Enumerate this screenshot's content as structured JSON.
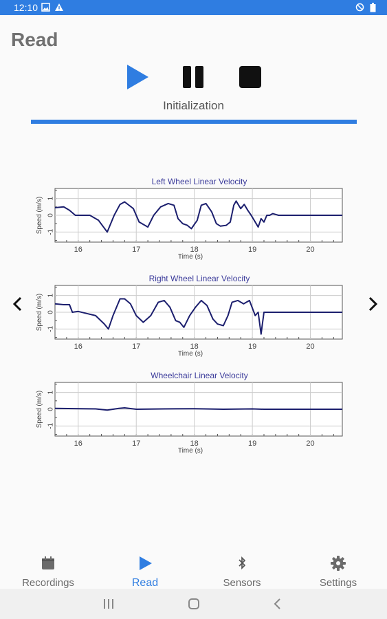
{
  "status_bar": {
    "time": "12:10"
  },
  "header": {
    "title": "Read"
  },
  "player": {
    "status": "Initialization",
    "progress": 1.0
  },
  "charts": [
    {
      "title": "Left Wheel Linear Velocity",
      "ylabel": "Speed (m/s)",
      "xlabel": "Time (s)"
    },
    {
      "title": "Right Wheel Linear Velocity",
      "ylabel": "Speed (m/s)",
      "xlabel": "Time (s)"
    },
    {
      "title": "Wheelchair Linear Velocity",
      "ylabel": "Speed (m/s)",
      "xlabel": "Time (s)"
    }
  ],
  "chart_data": [
    {
      "type": "line",
      "title": "Left Wheel Linear Velocity",
      "xlabel": "Time (s)",
      "ylabel": "Speed (m/s)",
      "xlim": [
        15.6,
        20.55
      ],
      "ylim": [
        -1.6,
        1.6
      ],
      "xticks": [
        16,
        17,
        18,
        19,
        20
      ],
      "yticks": [
        -1,
        0,
        1
      ],
      "grid": true,
      "x": [
        15.6,
        15.75,
        15.85,
        15.95,
        16.2,
        16.35,
        16.5,
        16.62,
        16.72,
        16.8,
        16.95,
        17.05,
        17.2,
        17.3,
        17.42,
        17.55,
        17.65,
        17.72,
        17.8,
        17.88,
        17.95,
        18.05,
        18.12,
        18.2,
        18.3,
        18.38,
        18.45,
        18.55,
        18.62,
        18.68,
        18.72,
        18.8,
        18.86,
        18.92,
        18.98,
        19.05,
        19.1,
        19.15,
        19.2,
        19.25,
        19.3,
        19.35,
        19.45,
        20.55
      ],
      "y": [
        0.45,
        0.5,
        0.3,
        0.0,
        0.0,
        -0.3,
        -1.0,
        0.0,
        0.65,
        0.8,
        0.4,
        -0.4,
        -0.7,
        0.0,
        0.5,
        0.7,
        0.6,
        -0.2,
        -0.5,
        -0.6,
        -0.8,
        -0.3,
        0.6,
        0.7,
        0.2,
        -0.5,
        -0.65,
        -0.6,
        -0.4,
        0.6,
        0.85,
        0.4,
        0.65,
        0.3,
        0.0,
        -0.4,
        -0.7,
        -0.2,
        -0.4,
        0.0,
        0.0,
        0.1,
        0.0,
        0.0
      ]
    },
    {
      "type": "line",
      "title": "Right Wheel Linear Velocity",
      "xlabel": "Time (s)",
      "ylabel": "Speed (m/s)",
      "xlim": [
        15.6,
        20.55
      ],
      "ylim": [
        -1.6,
        1.6
      ],
      "xticks": [
        16,
        17,
        18,
        19,
        20
      ],
      "yticks": [
        -1,
        0,
        1
      ],
      "grid": true,
      "x": [
        15.6,
        15.75,
        15.85,
        15.9,
        16.0,
        16.3,
        16.45,
        16.52,
        16.6,
        16.72,
        16.8,
        16.9,
        17.0,
        17.12,
        17.25,
        17.38,
        17.48,
        17.58,
        17.68,
        17.75,
        17.82,
        17.92,
        18.02,
        18.12,
        18.22,
        18.32,
        18.4,
        18.5,
        18.58,
        18.65,
        18.75,
        18.85,
        18.95,
        19.05,
        19.1,
        19.15,
        19.2,
        20.55
      ],
      "y": [
        0.5,
        0.45,
        0.45,
        0.0,
        0.05,
        -0.2,
        -0.7,
        -1.0,
        -0.2,
        0.8,
        0.8,
        0.5,
        -0.2,
        -0.6,
        -0.2,
        0.6,
        0.7,
        0.3,
        -0.5,
        -0.6,
        -0.9,
        -0.2,
        0.3,
        0.7,
        0.4,
        -0.4,
        -0.7,
        -0.8,
        -0.2,
        0.6,
        0.7,
        0.5,
        0.7,
        -0.2,
        0.0,
        -1.3,
        0.0,
        0.0
      ]
    },
    {
      "type": "line",
      "title": "Wheelchair Linear Velocity",
      "xlabel": "Time (s)",
      "ylabel": "Speed (m/s)",
      "xlim": [
        15.6,
        20.55
      ],
      "ylim": [
        -1.6,
        1.6
      ],
      "xticks": [
        16,
        17,
        18,
        19,
        20
      ],
      "yticks": [
        -1,
        0,
        1
      ],
      "grid": true,
      "x": [
        15.6,
        16.3,
        16.5,
        16.7,
        16.8,
        17.0,
        17.5,
        18.0,
        18.5,
        19.0,
        19.2,
        20.55
      ],
      "y": [
        0.05,
        0.02,
        -0.05,
        0.05,
        0.08,
        0.0,
        0.02,
        0.03,
        0.0,
        0.02,
        0.0,
        0.0
      ]
    }
  ],
  "tabs": [
    {
      "label": "Recordings",
      "icon": "calendar-icon"
    },
    {
      "label": "Read",
      "icon": "play-icon",
      "active": true
    },
    {
      "label": "Sensors",
      "icon": "bluetooth-icon"
    },
    {
      "label": "Settings",
      "icon": "gear-icon"
    }
  ],
  "colors": {
    "accent": "#2f7de1",
    "line": "#1c1f6e",
    "title_text": "#3a3a9a"
  }
}
